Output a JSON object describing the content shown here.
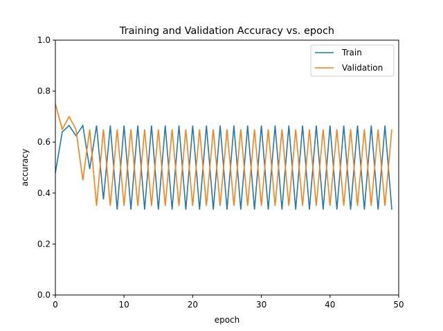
{
  "chart_data": {
    "type": "line",
    "title": "Training and Validation Accuracy vs. epoch",
    "xlabel": "epoch",
    "ylabel": "accuracy",
    "xlim": [
      0,
      50
    ],
    "ylim": [
      0.0,
      1.0
    ],
    "xticks": [
      0,
      10,
      20,
      30,
      40,
      50
    ],
    "yticks": [
      0.0,
      0.2,
      0.4,
      0.6,
      0.8,
      1.0
    ],
    "xtick_labels": [
      "0",
      "10",
      "20",
      "30",
      "40",
      "50"
    ],
    "ytick_labels": [
      "0.0",
      "0.2",
      "0.4",
      "0.6",
      "0.8",
      "1.0"
    ],
    "grid": false,
    "legend_position": "top-right",
    "x": [
      0,
      1,
      2,
      3,
      4,
      5,
      6,
      7,
      8,
      9,
      10,
      11,
      12,
      13,
      14,
      15,
      16,
      17,
      18,
      19,
      20,
      21,
      22,
      23,
      24,
      25,
      26,
      27,
      28,
      29,
      30,
      31,
      32,
      33,
      34,
      35,
      36,
      37,
      38,
      39,
      40,
      41,
      42,
      43,
      44,
      45,
      46,
      47,
      48,
      49
    ],
    "series": [
      {
        "name": "Train",
        "color": "#1f77b4",
        "values": [
          0.48,
          0.64,
          0.665,
          0.625,
          0.665,
          0.495,
          0.665,
          0.375,
          0.665,
          0.335,
          0.665,
          0.335,
          0.665,
          0.335,
          0.665,
          0.335,
          0.665,
          0.335,
          0.665,
          0.335,
          0.665,
          0.335,
          0.665,
          0.335,
          0.665,
          0.335,
          0.665,
          0.335,
          0.665,
          0.335,
          0.665,
          0.335,
          0.665,
          0.335,
          0.665,
          0.335,
          0.665,
          0.335,
          0.665,
          0.335,
          0.665,
          0.335,
          0.665,
          0.335,
          0.665,
          0.335,
          0.665,
          0.335,
          0.665,
          0.335
        ]
      },
      {
        "name": "Validation",
        "color": "#ff7f0e",
        "values": [
          0.75,
          0.65,
          0.7,
          0.65,
          0.45,
          0.65,
          0.35,
          0.65,
          0.35,
          0.65,
          0.35,
          0.65,
          0.35,
          0.65,
          0.35,
          0.65,
          0.35,
          0.65,
          0.35,
          0.65,
          0.35,
          0.65,
          0.35,
          0.65,
          0.35,
          0.65,
          0.35,
          0.65,
          0.35,
          0.65,
          0.35,
          0.65,
          0.35,
          0.65,
          0.35,
          0.65,
          0.35,
          0.65,
          0.35,
          0.65,
          0.35,
          0.65,
          0.35,
          0.65,
          0.35,
          0.65,
          0.35,
          0.65,
          0.35,
          0.65
        ]
      }
    ]
  }
}
